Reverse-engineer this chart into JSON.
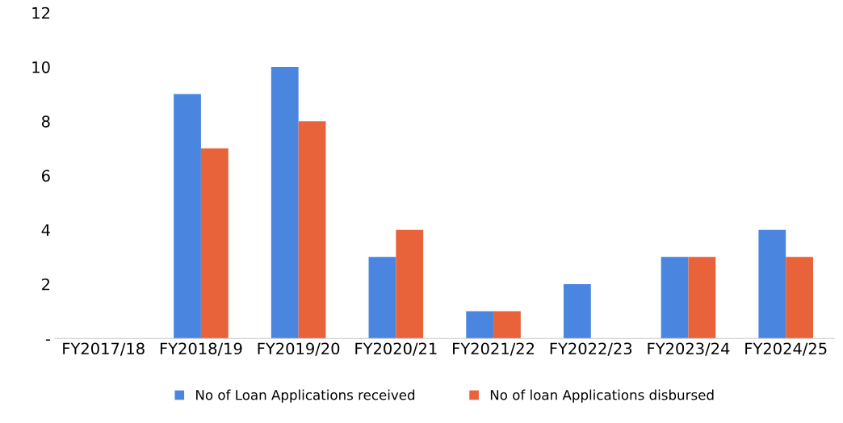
{
  "chart_data": {
    "type": "bar",
    "categories": [
      "FY2017/18",
      "FY2018/19",
      "FY2019/20",
      "FY2020/21",
      "FY2021/22",
      "FY2022/23",
      "FY2023/24",
      "FY2024/25"
    ],
    "series": [
      {
        "name": "No of Loan Applications received",
        "color": "#4a86e0",
        "values": [
          0,
          9,
          10,
          3,
          1,
          2,
          3,
          4
        ]
      },
      {
        "name": "No of loan Applications disbursed",
        "color": "#e8623a",
        "values": [
          0,
          7,
          8,
          4,
          1,
          0,
          3,
          3
        ]
      }
    ],
    "ylim": [
      0,
      12
    ],
    "yticks": [
      {
        "value": 0,
        "label": "-"
      },
      2,
      4,
      6,
      8,
      10,
      12
    ],
    "grid": false,
    "legend": "bottom"
  }
}
